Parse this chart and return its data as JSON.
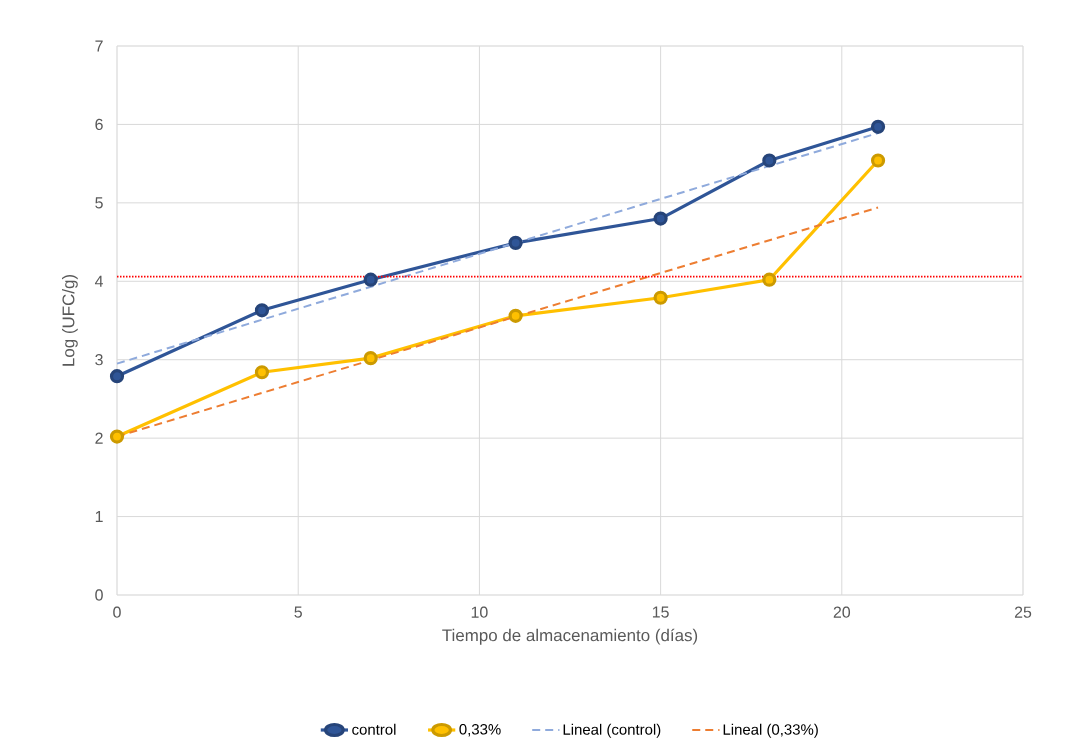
{
  "chart_data": {
    "type": "line",
    "xlabel": "Tiempo de almacenamiento (días)",
    "ylabel": "Log (UFC/g)",
    "xlim": [
      0,
      25
    ],
    "ylim": [
      0,
      7
    ],
    "xticks": [
      0,
      5,
      10,
      15,
      20,
      25
    ],
    "yticks": [
      0,
      1,
      2,
      3,
      4,
      5,
      6,
      7
    ],
    "grid": true,
    "legend": "bottom",
    "series": [
      {
        "name": "control",
        "color": "#2f5597",
        "marker": "circle",
        "line_style": "solid",
        "x": [
          0,
          4,
          7,
          11,
          15,
          18,
          21
        ],
        "values": [
          2.79,
          3.63,
          4.02,
          4.49,
          4.8,
          5.54,
          5.97
        ]
      },
      {
        "name": "0,33%",
        "color": "#ffc000",
        "marker": "circle",
        "line_style": "solid",
        "x": [
          0,
          4,
          7,
          11,
          15,
          18,
          21
        ],
        "values": [
          2.02,
          2.84,
          3.02,
          3.56,
          3.79,
          4.02,
          5.54
        ]
      },
      {
        "name": "Lineal (control)",
        "color": "#8faadc",
        "marker": "none",
        "line_style": "dashed",
        "x": [
          0,
          21
        ],
        "values": [
          2.95,
          5.89
        ]
      },
      {
        "name": "Lineal (0,33%)",
        "color": "#ed7d31",
        "marker": "none",
        "line_style": "dashed",
        "x": [
          0,
          21
        ],
        "values": [
          2.02,
          4.94
        ]
      }
    ],
    "ref_lines": [
      {
        "axis": "y",
        "value": 4.06,
        "color": "#ff0000",
        "line_style": "dotted"
      }
    ]
  }
}
